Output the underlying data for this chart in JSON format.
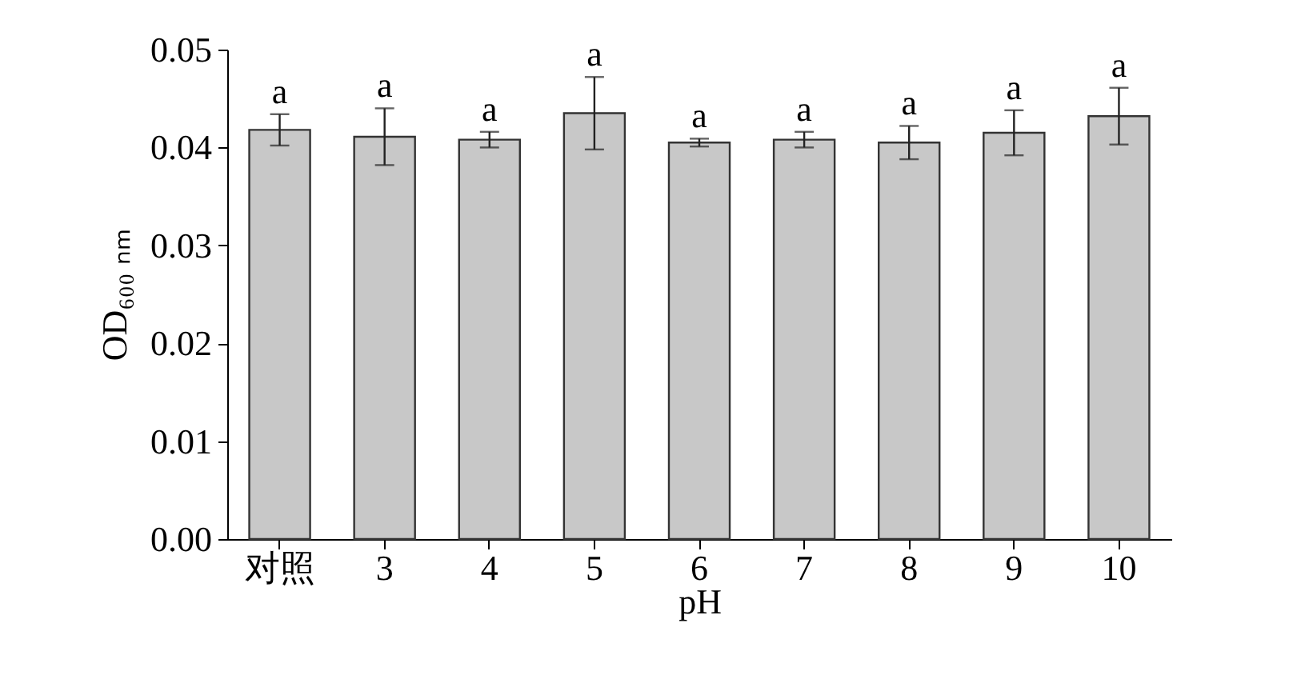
{
  "chart_data": {
    "type": "bar",
    "categories": [
      "对照",
      "3",
      "4",
      "5",
      "6",
      "7",
      "8",
      "9",
      "10"
    ],
    "values": [
      0.0418,
      0.0411,
      0.0408,
      0.0435,
      0.0405,
      0.0408,
      0.0405,
      0.0415,
      0.0432
    ],
    "errors": [
      0.0016,
      0.0029,
      0.0008,
      0.0037,
      0.0004,
      0.0008,
      0.0017,
      0.0023,
      0.0029
    ],
    "color": "#c8c8c8",
    "xlabel": "pH",
    "ylabel": "OD₆₀₀ ₙₘ",
    "ylim": [
      0,
      0.05
    ],
    "yticks": [
      {
        "value": 0,
        "label": "0.00"
      },
      0.01,
      0.02,
      0.03,
      0.04,
      0.05
    ],
    "grid": false,
    "annotations": [
      {
        "text": "a",
        "x": "对照",
        "y": 0.0434
      },
      {
        "text": "a",
        "x": "3",
        "y": 0.044
      },
      {
        "text": "a",
        "x": "4",
        "y": 0.0416
      },
      {
        "text": "a",
        "x": "5",
        "y": 0.0472
      },
      {
        "text": "a",
        "x": "6",
        "y": 0.0409
      },
      {
        "text": "a",
        "x": "7",
        "y": 0.0416
      },
      {
        "text": "a",
        "x": "8",
        "y": 0.0422
      },
      {
        "text": "a",
        "x": "9",
        "y": 0.0438
      },
      {
        "text": "a",
        "x": "10",
        "y": 0.0461
      }
    ]
  }
}
